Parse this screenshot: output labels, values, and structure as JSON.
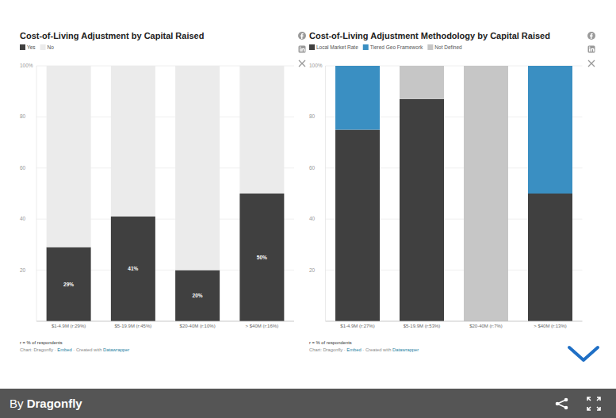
{
  "chart_data": [
    {
      "type": "bar",
      "stacked": true,
      "grid": true,
      "legend": "top-left",
      "title": "Cost-of-Living Adjustment by Capital Raised",
      "categories": [
        "$1-4.9M (r:29%)",
        "$5-19.9M (r:45%)",
        "$20-40M (r:10%)",
        "> $40M (r:16%)"
      ],
      "series": [
        {
          "name": "Yes",
          "color": "#404040",
          "values": [
            29,
            41,
            20,
            50
          ],
          "data_labels": true,
          "value_labels": [
            "29%",
            "41%",
            "20%",
            "50%"
          ]
        },
        {
          "name": "No",
          "color": "#ebebeb",
          "values": [
            71,
            59,
            80,
            50
          ]
        }
      ],
      "ylim": [
        0,
        100
      ],
      "yticks": [
        20,
        40,
        60,
        80,
        {
          "value": 100,
          "label": "100%"
        }
      ],
      "note": "r = % of respondents",
      "source": [
        "Chart: Dragonfly · ",
        "Embed",
        " · Created with ",
        "Datawrapper"
      ]
    },
    {
      "type": "bar",
      "stacked": true,
      "grid": true,
      "legend": "top-left",
      "title": "Cost-of-Living Adjustment Methodology by Capital Raised",
      "categories": [
        "$1-4.9M (r:27%)",
        "$5-19.9M (r:53%)",
        "$20-40M (r:7%)",
        "> $40M (r:13%)"
      ],
      "series": [
        {
          "name": "Local Market Rate",
          "color": "#404040",
          "values": [
            75,
            87,
            0,
            50
          ]
        },
        {
          "name": "Tiered Geo Framework",
          "color": "#3a8fc2",
          "values": [
            25,
            0,
            0,
            50
          ]
        },
        {
          "name": "Not Defined",
          "color": "#c6c6c6",
          "values": [
            0,
            13,
            100,
            0
          ]
        }
      ],
      "ylim": [
        0,
        100
      ],
      "yticks": [
        20,
        40,
        60,
        80,
        {
          "value": 100,
          "label": "100%"
        }
      ],
      "note": "r = % of respondents",
      "source": [
        "Chart: Dragonfly · ",
        "Embed",
        " · Created with ",
        "Datawrapper"
      ]
    }
  ],
  "byline": [
    "By ",
    "Dragonfly"
  ]
}
